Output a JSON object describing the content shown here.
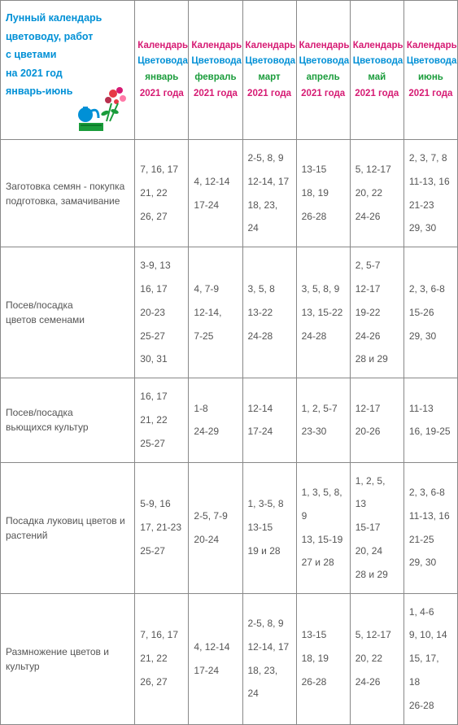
{
  "header": {
    "title_lines": [
      "Лунный календарь",
      "цветоводу, работ",
      "с цветами",
      "на 2021 год",
      "январь-июнь"
    ]
  },
  "columns": [
    {
      "l1": "Календарь",
      "l2": "Цветовода",
      "l3": "январь",
      "l4": "2021 года"
    },
    {
      "l1": "Календарь",
      "l2": "Цветовода",
      "l3": "февраль",
      "l4": "2021 года"
    },
    {
      "l1": "Календарь",
      "l2": "Цветовода",
      "l3": "март",
      "l4": "2021 года"
    },
    {
      "l1": "Календарь",
      "l2": "Цветовода",
      "l3": "апрель",
      "l4": "2021 года"
    },
    {
      "l1": "Календарь",
      "l2": "Цветовода",
      "l3": "май",
      "l4": "2021 года"
    },
    {
      "l1": "Календарь",
      "l2": "Цветовода",
      "l3": "июнь",
      "l4": "2021 года"
    }
  ],
  "rows": [
    {
      "label": "Заготовка семян - покупка подготовка,  замачивание",
      "cells": [
        "7, 16, 17\n21, 22\n26, 27",
        "4, 12-14\n17-24",
        "2-5, 8, 9\n12-14, 17\n18, 23, 24",
        "13-15\n18, 19\n26-28",
        "5, 12-17\n20, 22\n24-26",
        "2, 3, 7, 8\n11-13, 16\n21-23\n29, 30"
      ]
    },
    {
      "label": "Посев/посадка\nцветов семенами",
      "cells": [
        "3-9, 13\n16, 17\n20-23\n 25-27\n 30, 31",
        "4, 7-9\n12-14,\n7-25",
        "3, 5, 8\n13-22\n24-28",
        "3, 5, 8, 9\n13, 15-22\n 24-28",
        " 2, 5-7\n12-17\n 19-22\n 24-26\n 28 и 29",
        "2, 3, 6-8\n 15-26\n 29, 30"
      ]
    },
    {
      "label": "Посев/посадка\nвьющихся культур",
      "cells": [
        "16, 17\n21, 22\n25-27",
        "1-8\n24-29",
        "12-14\n17-24",
        "1, 2, 5-7\n23-30",
        "12-17\n20-26",
        "11-13\n16, 19-25"
      ]
    },
    {
      "label": "Посадка луковиц цветов и растений",
      "cells": [
        "5-9, 16\n17, 21-23\n 25-27",
        "2-5, 7-9\n20-24",
        "1, 3-5, 8\n 13-15\n 19 и 28",
        "1, 3, 5, 8, 9\n13, 15-19\n 27 и 28",
        "1, 2, 5, 13\n 15-17\n 20, 24\n 28 и 29",
        "2, 3, 6-8\n11-13, 16\n 21-25\n 29, 30"
      ]
    },
    {
      "label": "Размножение цветов и культур",
      "cells": [
        "7, 16, 17\n21, 22\n26, 27",
        "4, 12-14\n17-24",
        "2-5, 8, 9\n12-14, 17\n18, 23, 24",
        "13-15\n18, 19\n26-28",
        "5, 12-17\n20, 22\n24-26",
        "1, 4-6\n9, 10, 14\n15, 17, 18\n26-28"
      ]
    }
  ],
  "style": {
    "color_pink": "#d61a73",
    "color_blue": "#0090d6",
    "color_green": "#1a9c3b",
    "color_text": "#555555",
    "border_color": "#888888"
  }
}
